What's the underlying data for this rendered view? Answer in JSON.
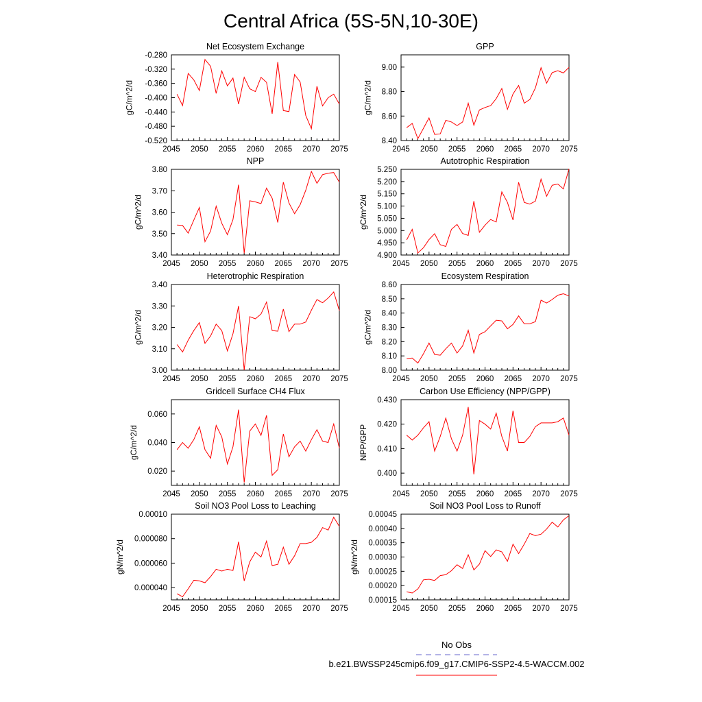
{
  "title": "Central Africa (5S-5N,10-30E)",
  "legend": {
    "obs_label": "No Obs",
    "model_label": "b.e21.BWSSP245cmip6.f09_g17.CMIP6-SSP2-4.5-WACCM.002",
    "obs_color": "#6666cc",
    "model_color": "#ff0000"
  },
  "chart_data": [
    {
      "type": "line",
      "title": "Net Ecosystem Exchange",
      "ylabel": "gC/m^2/d",
      "xlim": [
        2045,
        2075
      ],
      "ylim": [
        -0.52,
        -0.28
      ],
      "xticks": [
        2045,
        2050,
        2055,
        2060,
        2065,
        2070,
        2075
      ],
      "xtick_labels": [
        "2045",
        "2050",
        "2055",
        "2060",
        "2065",
        "2070",
        "2075"
      ],
      "yticks": [
        -0.52,
        -0.48,
        -0.44,
        -0.4,
        -0.36,
        -0.32,
        -0.28
      ],
      "ytick_labels": [
        "-0.520",
        "-0.480",
        "-0.440",
        "-0.400",
        "-0.360",
        "-0.320",
        "-0.280"
      ],
      "x": [
        2046,
        2047,
        2048,
        2049,
        2050,
        2051,
        2052,
        2053,
        2054,
        2055,
        2056,
        2057,
        2058,
        2059,
        2060,
        2061,
        2062,
        2063,
        2064,
        2065,
        2066,
        2067,
        2068,
        2069,
        2070,
        2071,
        2072,
        2073,
        2074,
        2075
      ],
      "series": [
        {
          "color": "#ff0000",
          "values": [
            -0.39,
            -0.422,
            -0.332,
            -0.35,
            -0.38,
            -0.293,
            -0.312,
            -0.388,
            -0.325,
            -0.367,
            -0.345,
            -0.418,
            -0.343,
            -0.375,
            -0.383,
            -0.343,
            -0.357,
            -0.445,
            -0.3,
            -0.436,
            -0.439,
            -0.335,
            -0.356,
            -0.45,
            -0.487,
            -0.368,
            -0.423,
            -0.4,
            -0.39,
            -0.418
          ]
        }
      ]
    },
    {
      "type": "line",
      "title": "GPP",
      "ylabel": "gC/m^2/d",
      "xlim": [
        2045,
        2075
      ],
      "ylim": [
        8.4,
        9.1
      ],
      "xticks": [
        2045,
        2050,
        2055,
        2060,
        2065,
        2070,
        2075
      ],
      "xtick_labels": [
        "2045",
        "2050",
        "2055",
        "2060",
        "2065",
        "2070",
        "2075"
      ],
      "yticks": [
        8.4,
        8.6,
        8.8,
        9.0
      ],
      "ytick_labels": [
        "8.40",
        "8.60",
        "8.80",
        "9.00"
      ],
      "x": [
        2046,
        2047,
        2048,
        2049,
        2050,
        2051,
        2052,
        2053,
        2054,
        2055,
        2056,
        2057,
        2058,
        2059,
        2060,
        2061,
        2062,
        2063,
        2064,
        2065,
        2066,
        2067,
        2068,
        2069,
        2070,
        2071,
        2072,
        2073,
        2074,
        2075
      ],
      "series": [
        {
          "color": "#ff0000",
          "values": [
            8.505,
            8.54,
            8.415,
            8.5,
            8.585,
            8.45,
            8.455,
            8.565,
            8.552,
            8.522,
            8.552,
            8.705,
            8.525,
            8.65,
            8.67,
            8.685,
            8.742,
            8.825,
            8.655,
            8.78,
            8.85,
            8.705,
            8.735,
            8.83,
            8.995,
            8.868,
            8.955,
            8.97,
            8.952,
            8.998
          ]
        }
      ]
    },
    {
      "type": "line",
      "title": "NPP",
      "ylabel": "gC/m^2/d",
      "xlim": [
        2045,
        2075
      ],
      "ylim": [
        3.4,
        3.8
      ],
      "xticks": [
        2045,
        2050,
        2055,
        2060,
        2065,
        2070,
        2075
      ],
      "xtick_labels": [
        "2045",
        "2050",
        "2055",
        "2060",
        "2065",
        "2070",
        "2075"
      ],
      "yticks": [
        3.4,
        3.5,
        3.6,
        3.7,
        3.8
      ],
      "ytick_labels": [
        "3.40",
        "3.50",
        "3.60",
        "3.70",
        "3.80"
      ],
      "x": [
        2046,
        2047,
        2048,
        2049,
        2050,
        2051,
        2052,
        2053,
        2054,
        2055,
        2056,
        2057,
        2058,
        2059,
        2060,
        2061,
        2062,
        2063,
        2064,
        2065,
        2066,
        2067,
        2068,
        2069,
        2070,
        2071,
        2072,
        2073,
        2074,
        2075
      ],
      "series": [
        {
          "color": "#ff0000",
          "values": [
            3.54,
            3.538,
            3.502,
            3.563,
            3.622,
            3.462,
            3.512,
            3.628,
            3.548,
            3.495,
            3.565,
            3.728,
            3.408,
            3.653,
            3.648,
            3.64,
            3.712,
            3.665,
            3.552,
            3.74,
            3.643,
            3.593,
            3.635,
            3.702,
            3.79,
            3.735,
            3.775,
            3.782,
            3.785,
            3.74
          ]
        }
      ]
    },
    {
      "type": "line",
      "title": "Autotrophic Respiration",
      "ylabel": "gC/m^2/d",
      "xlim": [
        2045,
        2075
      ],
      "ylim": [
        4.9,
        5.25
      ],
      "xticks": [
        2045,
        2050,
        2055,
        2060,
        2065,
        2070,
        2075
      ],
      "xtick_labels": [
        "2045",
        "2050",
        "2055",
        "2060",
        "2065",
        "2070",
        "2075"
      ],
      "yticks": [
        4.9,
        4.95,
        5.0,
        5.05,
        5.1,
        5.15,
        5.2,
        5.25
      ],
      "ytick_labels": [
        "4.900",
        "4.950",
        "5.000",
        "5.050",
        "5.100",
        "5.150",
        "5.200",
        "5.250"
      ],
      "x": [
        2046,
        2047,
        2048,
        2049,
        2050,
        2051,
        2052,
        2053,
        2054,
        2055,
        2056,
        2057,
        2058,
        2059,
        2060,
        2061,
        2062,
        2063,
        2064,
        2065,
        2066,
        2067,
        2068,
        2069,
        2070,
        2071,
        2072,
        2073,
        2074,
        2075
      ],
      "series": [
        {
          "color": "#ff0000",
          "values": [
            4.962,
            5.005,
            4.908,
            4.93,
            4.963,
            4.987,
            4.942,
            4.935,
            5.005,
            5.025,
            4.988,
            4.98,
            5.12,
            4.993,
            5.022,
            5.045,
            5.035,
            5.158,
            5.115,
            5.043,
            5.197,
            5.115,
            5.108,
            5.12,
            5.21,
            5.14,
            5.185,
            5.19,
            5.17,
            5.252
          ]
        }
      ]
    },
    {
      "type": "line",
      "title": "Heterotrophic Respiration",
      "ylabel": "gC/m^2/d",
      "xlim": [
        2045,
        2075
      ],
      "ylim": [
        3.0,
        3.4
      ],
      "xticks": [
        2045,
        2050,
        2055,
        2060,
        2065,
        2070,
        2075
      ],
      "xtick_labels": [
        "2045",
        "2050",
        "2055",
        "2060",
        "2065",
        "2070",
        "2075"
      ],
      "yticks": [
        3.0,
        3.1,
        3.2,
        3.3,
        3.4
      ],
      "ytick_labels": [
        "3.00",
        "3.10",
        "3.20",
        "3.30",
        "3.40"
      ],
      "x": [
        2046,
        2047,
        2048,
        2049,
        2050,
        2051,
        2052,
        2053,
        2054,
        2055,
        2056,
        2057,
        2058,
        2059,
        2060,
        2061,
        2062,
        2063,
        2064,
        2065,
        2066,
        2067,
        2068,
        2069,
        2070,
        2071,
        2072,
        2073,
        2074,
        2075
      ],
      "series": [
        {
          "color": "#ff0000",
          "values": [
            3.12,
            3.085,
            3.14,
            3.185,
            3.222,
            3.125,
            3.16,
            3.215,
            3.185,
            3.09,
            3.17,
            3.3,
            3.0,
            3.25,
            3.24,
            3.262,
            3.318,
            3.185,
            3.182,
            3.285,
            3.18,
            3.215,
            3.215,
            3.225,
            3.28,
            3.33,
            3.315,
            3.337,
            3.365,
            3.278
          ]
        }
      ]
    },
    {
      "type": "line",
      "title": "Ecosystem Respiration",
      "ylabel": "gC/m^2/d",
      "xlim": [
        2045,
        2075
      ],
      "ylim": [
        8.0,
        8.6
      ],
      "xticks": [
        2045,
        2050,
        2055,
        2060,
        2065,
        2070,
        2075
      ],
      "xtick_labels": [
        "2045",
        "2050",
        "2055",
        "2060",
        "2065",
        "2070",
        "2075"
      ],
      "yticks": [
        8.0,
        8.1,
        8.2,
        8.3,
        8.4,
        8.5,
        8.6
      ],
      "ytick_labels": [
        "8.00",
        "8.10",
        "8.20",
        "8.30",
        "8.40",
        "8.50",
        "8.60"
      ],
      "x": [
        2046,
        2047,
        2048,
        2049,
        2050,
        2051,
        2052,
        2053,
        2054,
        2055,
        2056,
        2057,
        2058,
        2059,
        2060,
        2061,
        2062,
        2063,
        2064,
        2065,
        2066,
        2067,
        2068,
        2069,
        2070,
        2071,
        2072,
        2073,
        2074,
        2075
      ],
      "series": [
        {
          "color": "#ff0000",
          "values": [
            8.08,
            8.085,
            8.05,
            8.115,
            8.19,
            8.11,
            8.105,
            8.15,
            8.19,
            8.12,
            8.17,
            8.28,
            8.12,
            8.25,
            8.27,
            8.31,
            8.35,
            8.345,
            8.29,
            8.32,
            8.38,
            8.325,
            8.325,
            8.34,
            8.49,
            8.47,
            8.495,
            8.525,
            8.535,
            8.52
          ]
        }
      ]
    },
    {
      "type": "line",
      "title": "Gridcell Surface CH4 Flux",
      "ylabel": "gC/m^2/d",
      "xlim": [
        2045,
        2075
      ],
      "ylim": [
        0.01,
        0.07
      ],
      "xticks": [
        2045,
        2050,
        2055,
        2060,
        2065,
        2070,
        2075
      ],
      "xtick_labels": [
        "2045",
        "2050",
        "2055",
        "2060",
        "2065",
        "2070",
        "2075"
      ],
      "yticks": [
        0.02,
        0.04,
        0.06
      ],
      "ytick_labels": [
        "0.020",
        "0.040",
        "0.060"
      ],
      "x": [
        2046,
        2047,
        2048,
        2049,
        2050,
        2051,
        2052,
        2053,
        2054,
        2055,
        2056,
        2057,
        2058,
        2059,
        2060,
        2061,
        2062,
        2063,
        2064,
        2065,
        2066,
        2067,
        2068,
        2069,
        2070,
        2071,
        2072,
        2073,
        2074,
        2075
      ],
      "series": [
        {
          "color": "#ff0000",
          "values": [
            0.035,
            0.04,
            0.036,
            0.042,
            0.051,
            0.035,
            0.029,
            0.052,
            0.044,
            0.025,
            0.037,
            0.063,
            0.012,
            0.048,
            0.053,
            0.045,
            0.059,
            0.017,
            0.021,
            0.046,
            0.03,
            0.037,
            0.041,
            0.034,
            0.042,
            0.049,
            0.041,
            0.04,
            0.053,
            0.036
          ]
        }
      ]
    },
    {
      "type": "line",
      "title": "Carbon Use Efficiency (NPP/GPP)",
      "ylabel": "NPP/GPP",
      "xlim": [
        2045,
        2075
      ],
      "ylim": [
        0.395,
        0.43
      ],
      "xticks": [
        2045,
        2050,
        2055,
        2060,
        2065,
        2070,
        2075
      ],
      "xtick_labels": [
        "2045",
        "2050",
        "2055",
        "2060",
        "2065",
        "2070",
        "2075"
      ],
      "yticks": [
        0.4,
        0.41,
        0.42,
        0.43
      ],
      "ytick_labels": [
        "0.400",
        "0.410",
        "0.420",
        "0.430"
      ],
      "x": [
        2046,
        2047,
        2048,
        2049,
        2050,
        2051,
        2052,
        2053,
        2054,
        2055,
        2056,
        2057,
        2058,
        2059,
        2060,
        2061,
        2062,
        2063,
        2064,
        2065,
        2066,
        2067,
        2068,
        2069,
        2070,
        2071,
        2072,
        2073,
        2074,
        2075
      ],
      "series": [
        {
          "color": "#ff0000",
          "values": [
            0.4155,
            0.4135,
            0.4155,
            0.4185,
            0.421,
            0.409,
            0.415,
            0.4225,
            0.414,
            0.409,
            0.4155,
            0.427,
            0.3995,
            0.4215,
            0.42,
            0.418,
            0.4245,
            0.415,
            0.409,
            0.4255,
            0.4125,
            0.4125,
            0.415,
            0.419,
            0.4205,
            0.4205,
            0.4205,
            0.421,
            0.4225,
            0.4155
          ]
        }
      ]
    },
    {
      "type": "line",
      "title": "Soil NO3 Pool Loss to Leaching",
      "ylabel": "gN/m^2/d",
      "xlim": [
        2045,
        2075
      ],
      "ylim": [
        3e-05,
        0.0001
      ],
      "xticks": [
        2045,
        2050,
        2055,
        2060,
        2065,
        2070,
        2075
      ],
      "xtick_labels": [
        "2045",
        "2050",
        "2055",
        "2060",
        "2065",
        "2070",
        "2075"
      ],
      "yticks": [
        4e-05,
        6e-05,
        8e-05,
        0.0001
      ],
      "ytick_labels": [
        "0.000040",
        "0.000060",
        "0.000080",
        "0.00010"
      ],
      "x": [
        2046,
        2047,
        2048,
        2049,
        2050,
        2051,
        2052,
        2053,
        2054,
        2055,
        2056,
        2057,
        2058,
        2059,
        2060,
        2061,
        2062,
        2063,
        2064,
        2065,
        2066,
        2067,
        2068,
        2069,
        2070,
        2071,
        2072,
        2073,
        2074,
        2075
      ],
      "series": [
        {
          "color": "#ff0000",
          "values": [
            3.5e-05,
            3.25e-05,
            3.9e-05,
            4.6e-05,
            4.55e-05,
            4.4e-05,
            4.9e-05,
            5.5e-05,
            5.35e-05,
            5.5e-05,
            5.4e-05,
            7.75e-05,
            4.55e-05,
            6.1e-05,
            6.9e-05,
            6.5e-05,
            7.8e-05,
            5.8e-05,
            5.9e-05,
            7.3e-05,
            5.9e-05,
            6.6e-05,
            7.6e-05,
            7.6e-05,
            7.7e-05,
            8.1e-05,
            8.9e-05,
            8.7e-05,
            9.75e-05,
            9e-05
          ]
        }
      ]
    },
    {
      "type": "line",
      "title": "Soil NO3 Pool Loss to Runoff",
      "ylabel": "gN/m^2/d",
      "xlim": [
        2045,
        2075
      ],
      "ylim": [
        0.00015,
        0.00045
      ],
      "xticks": [
        2045,
        2050,
        2055,
        2060,
        2065,
        2070,
        2075
      ],
      "xtick_labels": [
        "2045",
        "2050",
        "2055",
        "2060",
        "2065",
        "2070",
        "2075"
      ],
      "yticks": [
        0.00015,
        0.0002,
        0.00025,
        0.0003,
        0.00035,
        0.0004,
        0.00045
      ],
      "ytick_labels": [
        "0.00015",
        "0.00020",
        "0.00025",
        "0.00030",
        "0.00035",
        "0.00040",
        "0.00045"
      ],
      "x": [
        2046,
        2047,
        2048,
        2049,
        2050,
        2051,
        2052,
        2053,
        2054,
        2055,
        2056,
        2057,
        2058,
        2059,
        2060,
        2061,
        2062,
        2063,
        2064,
        2065,
        2066,
        2067,
        2068,
        2069,
        2070,
        2071,
        2072,
        2073,
        2074,
        2075
      ],
      "series": [
        {
          "color": "#ff0000",
          "values": [
            0.000178,
            0.000174,
            0.000188,
            0.00022,
            0.000222,
            0.000218,
            0.000235,
            0.000238,
            0.000252,
            0.000273,
            0.00026,
            0.000308,
            0.000255,
            0.000275,
            0.000322,
            0.000302,
            0.000325,
            0.000318,
            0.000285,
            0.000345,
            0.000312,
            0.000345,
            0.000382,
            0.000375,
            0.00038,
            0.000398,
            0.000422,
            0.000405,
            0.00043,
            0.000445
          ]
        }
      ]
    }
  ]
}
